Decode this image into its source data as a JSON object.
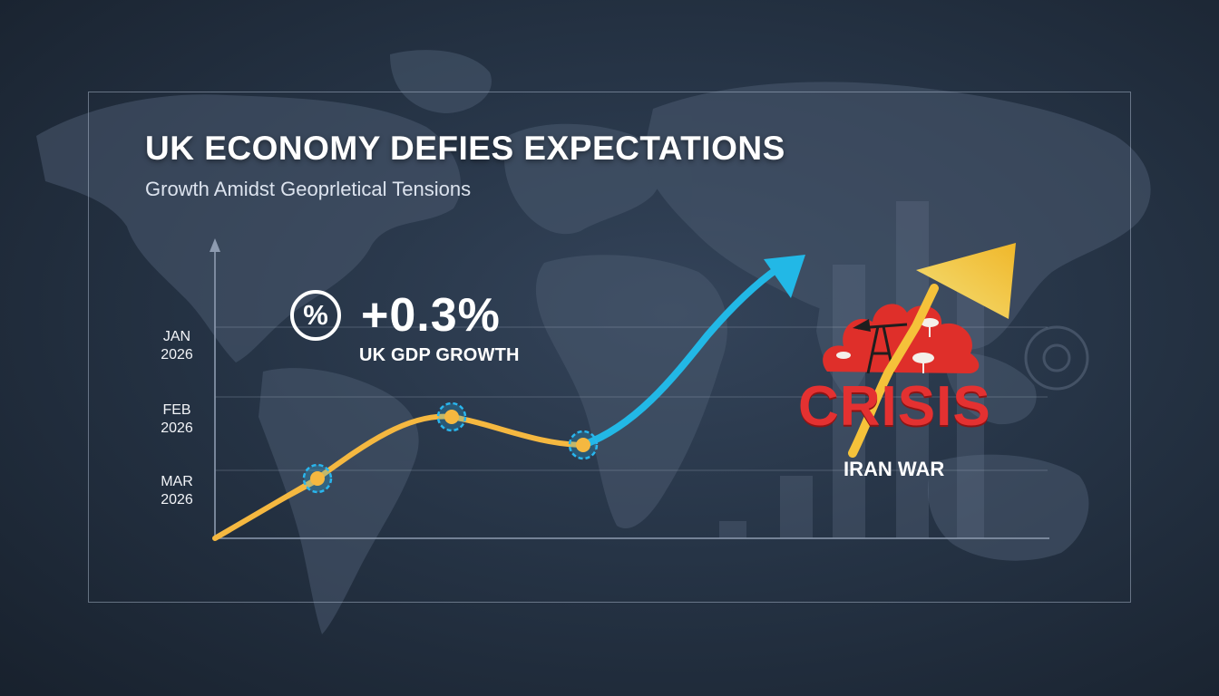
{
  "headline": {
    "title": "UK ECONOMY DEFIES EXPECTATIONS",
    "subtitle": "Growth Amidst Geoprletical Tensions"
  },
  "stat": {
    "icon": "percent-icon",
    "icon_glyph": "%",
    "value": "+0.3%",
    "label": "UK GDP GROWTH"
  },
  "crisis": {
    "icon": "oil-rig-explosion-icon",
    "word": "CRISIS",
    "subtitle": "IRAN WAR"
  },
  "colors": {
    "growth_line": "#f5b840",
    "growth_arrow": "#22b8e6",
    "crisis_red": "#e43131",
    "crisis_arrow": "#f5c23a",
    "marker_ring": "#29b6ee"
  },
  "chart_data": {
    "type": "line",
    "title": "UK ECONOMY DEFIES EXPECTATIONS",
    "subtitle": "Growth Amidst Geoprletical Tensions",
    "y_ticks": [
      {
        "month": "JAN",
        "year": "2026"
      },
      {
        "month": "FEB",
        "year": "2026"
      },
      {
        "month": "MAR",
        "year": "2026"
      }
    ],
    "grid": true,
    "markers": 3
  }
}
